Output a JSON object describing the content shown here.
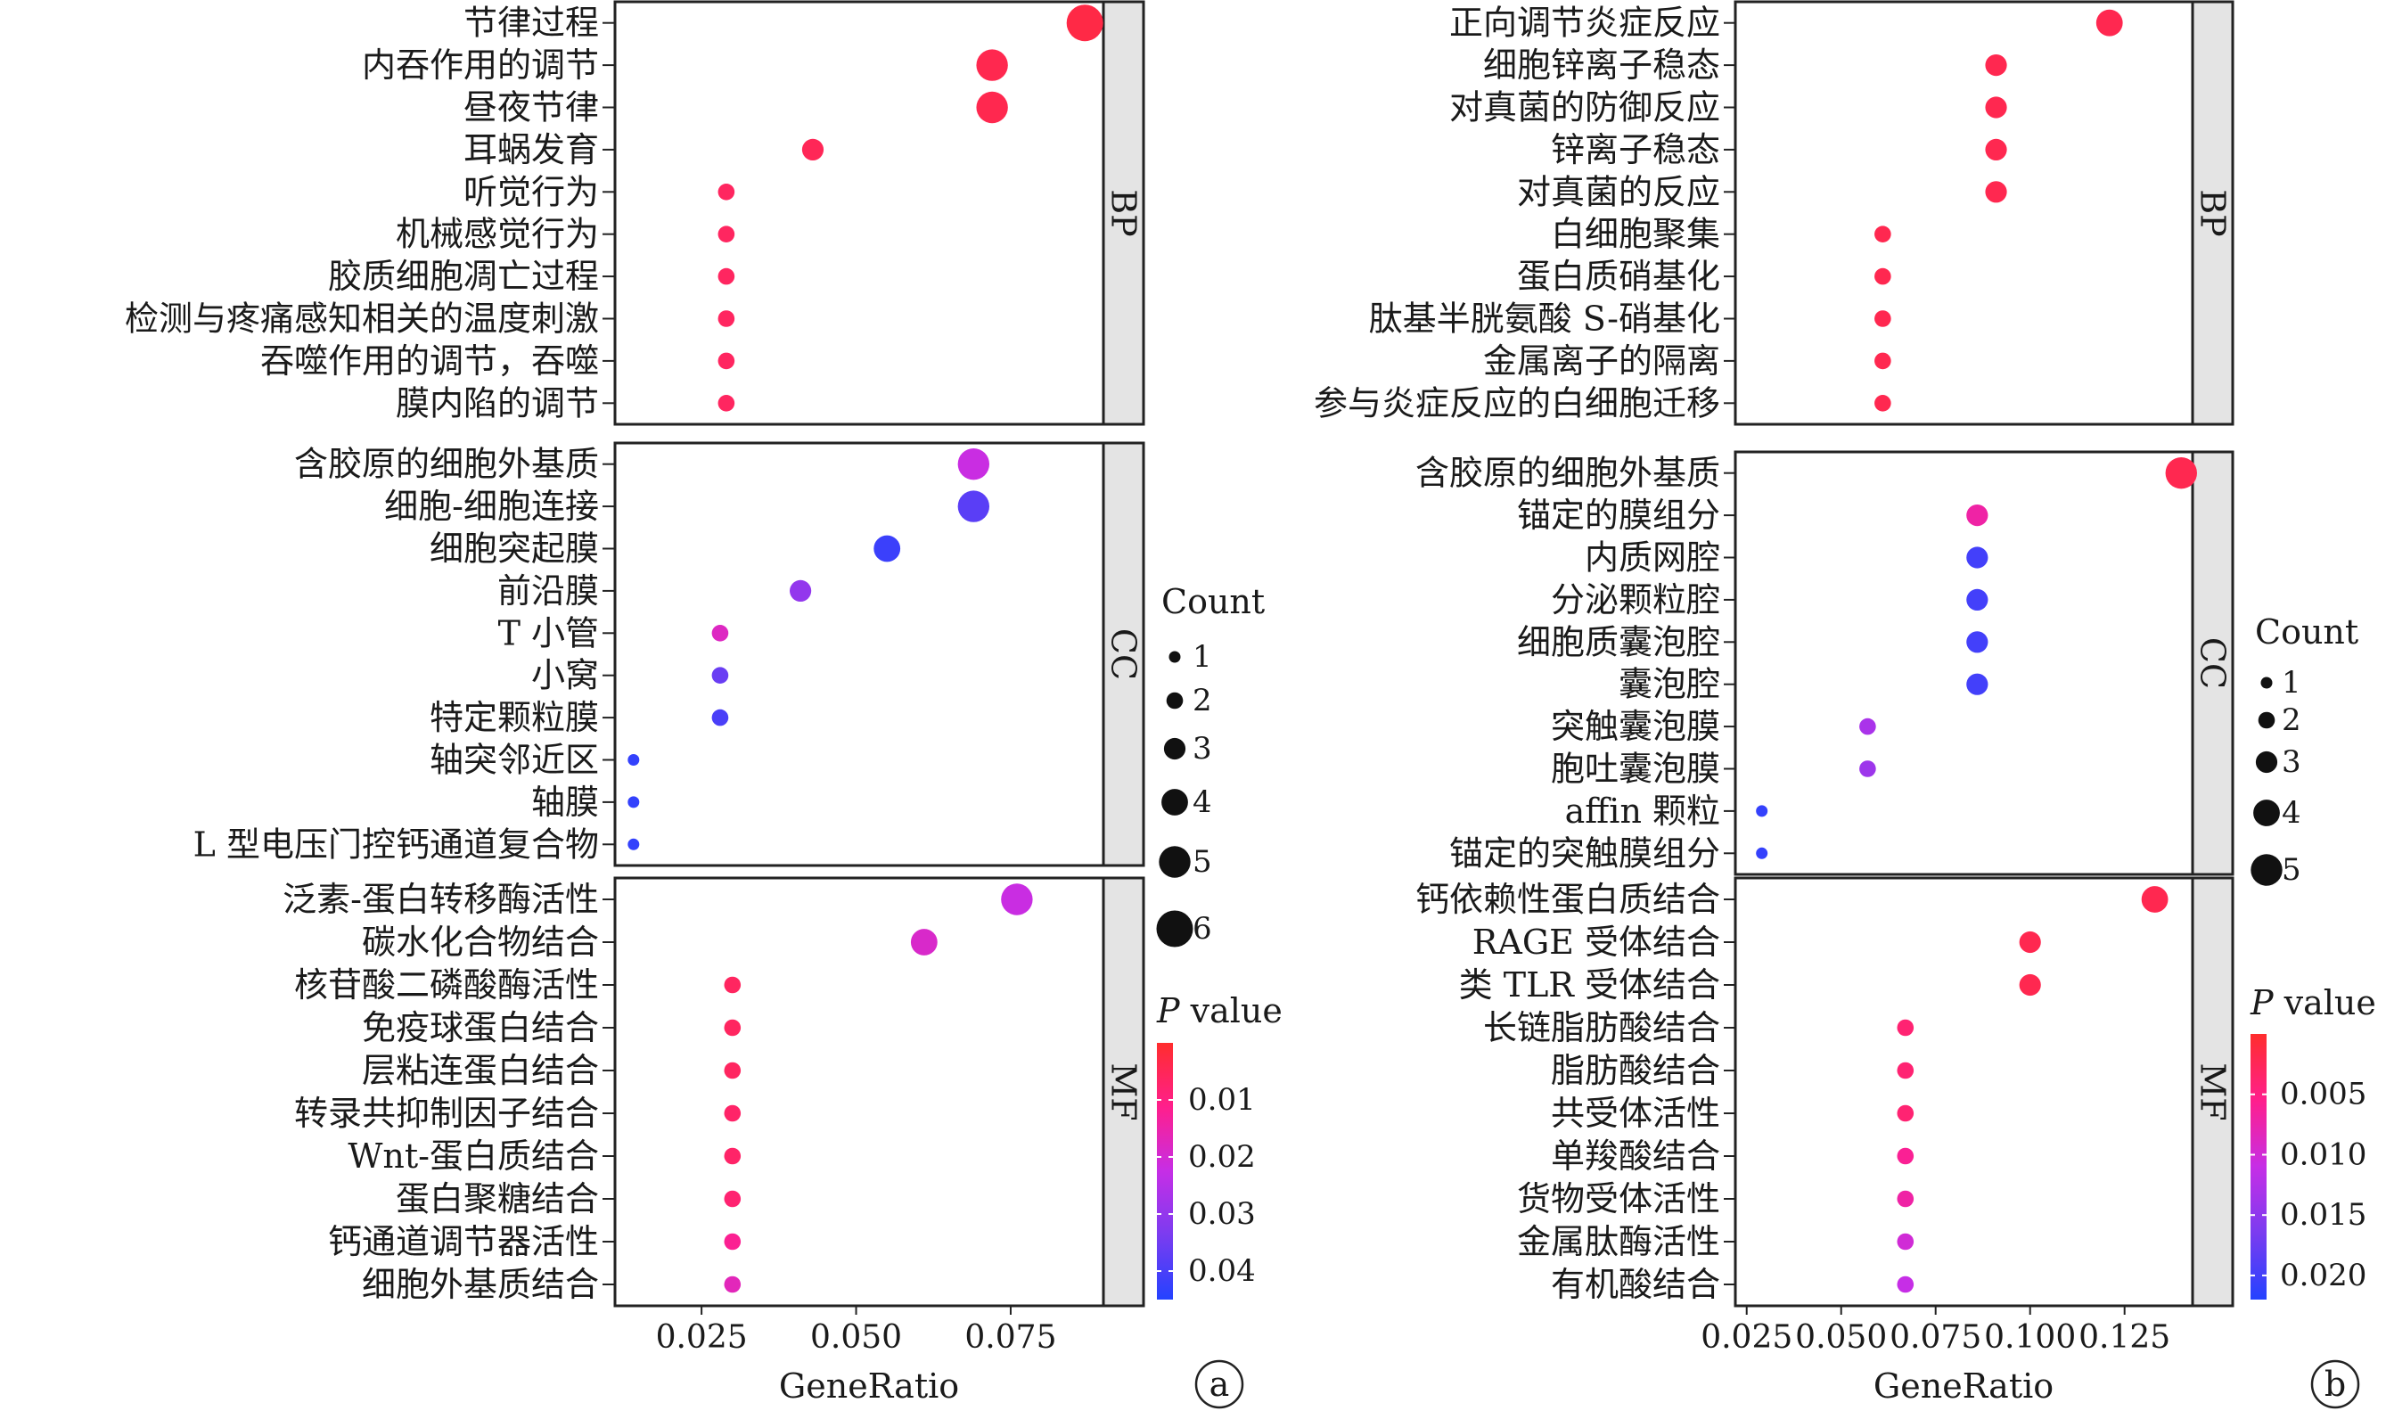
{
  "chart_data": [
    {
      "type": "scatter",
      "panel_tag": "a",
      "xlabel": "GeneRatio",
      "xlim": [
        0.011,
        0.09
      ],
      "xticks": [
        0.025,
        0.05,
        0.075
      ],
      "xtick_labels": [
        "0.025",
        "0.050",
        "0.075"
      ],
      "size_legend": {
        "title": "Count",
        "values": [
          1,
          2,
          3,
          4,
          5,
          6
        ]
      },
      "color_legend": {
        "title_italic": "P",
        "title_rest": " value",
        "range": [
          0.0,
          0.045
        ],
        "ticks": [
          0.01,
          0.02,
          0.03,
          0.04
        ],
        "tick_labels": [
          "0.01",
          "0.02",
          "0.03",
          "0.04"
        ],
        "colors": [
          "#ff2d2d",
          "#ff1f8c",
          "#c62ee6",
          "#7a3cf0",
          "#2442ff"
        ]
      },
      "facets": [
        {
          "name": "BP",
          "categories": [
            "节律过程",
            "内吞作用的调节",
            "昼夜节律",
            "耳蜗发育",
            "听觉行为",
            "机械感觉行为",
            "胶质细胞凋亡过程",
            "检测与疼痛感知相关的温度刺激",
            "吞噬作用的调节，吞噬",
            "膜内陷的调节"
          ],
          "x": [
            0.087,
            0.072,
            0.072,
            0.043,
            0.029,
            0.029,
            0.029,
            0.029,
            0.029,
            0.029
          ],
          "count": [
            6,
            5,
            5,
            3,
            2,
            2,
            2,
            2,
            2,
            2
          ],
          "p": [
            0.003,
            0.004,
            0.004,
            0.005,
            0.006,
            0.006,
            0.006,
            0.006,
            0.006,
            0.006
          ]
        },
        {
          "name": "CC",
          "categories": [
            "含胶原的细胞外基质",
            "细胞-细胞连接",
            "细胞突起膜",
            "前沿膜",
            "T 小管",
            "小窝",
            "特定颗粒膜",
            "轴突邻近区",
            "轴膜",
            "L 型电压门控钙通道复合物"
          ],
          "x": [
            0.069,
            0.069,
            0.055,
            0.041,
            0.028,
            0.028,
            0.028,
            0.014,
            0.014,
            0.014
          ],
          "count": [
            5,
            5,
            4,
            3,
            2,
            2,
            2,
            1,
            1,
            1
          ],
          "p": [
            0.022,
            0.038,
            0.042,
            0.03,
            0.018,
            0.036,
            0.04,
            0.043,
            0.043,
            0.043
          ]
        },
        {
          "name": "MF",
          "categories": [
            "泛素-蛋白转移酶活性",
            "碳水化合物结合",
            "核苷酸二磷酸酶活性",
            "免疫球蛋白结合",
            "层粘连蛋白结合",
            "转录共抑制因子结合",
            "Wnt-蛋白质结合",
            "蛋白聚糖结合",
            "钙通道调节器活性",
            "细胞外基质结合"
          ],
          "x": [
            0.076,
            0.061,
            0.03,
            0.03,
            0.03,
            0.03,
            0.03,
            0.03,
            0.03,
            0.03
          ],
          "count": [
            5,
            4,
            2,
            2,
            2,
            2,
            2,
            2,
            2,
            2
          ],
          "p": [
            0.022,
            0.019,
            0.006,
            0.006,
            0.006,
            0.007,
            0.007,
            0.008,
            0.012,
            0.017
          ]
        }
      ]
    },
    {
      "type": "scatter",
      "panel_tag": "b",
      "xlabel": "GeneRatio",
      "xlim": [
        0.022,
        0.143
      ],
      "xticks": [
        0.025,
        0.05,
        0.075,
        0.1,
        0.125
      ],
      "xtick_labels": [
        "0.025",
        "0.050",
        "0.075",
        "0.100",
        "0.125"
      ],
      "size_legend": {
        "title": "Count",
        "values": [
          1,
          2,
          3,
          4,
          5
        ]
      },
      "color_legend": {
        "title_italic": "P",
        "title_rest": " value",
        "range": [
          0.0,
          0.022
        ],
        "ticks": [
          0.005,
          0.01,
          0.015,
          0.02
        ],
        "tick_labels": [
          "0.005",
          "0.010",
          "0.015",
          "0.020"
        ],
        "colors": [
          "#ff2d2d",
          "#ff1f8c",
          "#c62ee6",
          "#7a3cf0",
          "#2442ff"
        ]
      },
      "facets": [
        {
          "name": "BP",
          "categories": [
            "正向调节炎症反应",
            "细胞锌离子稳态",
            "对真菌的防御反应",
            "锌离子稳态",
            "对真菌的反应",
            "白细胞聚集",
            "蛋白质硝基化",
            "肽基半胱氨酸 S-硝基化",
            "金属离子的隔离",
            "参与炎症反应的白细胞迁移"
          ],
          "x": [
            0.121,
            0.091,
            0.091,
            0.091,
            0.091,
            0.061,
            0.061,
            0.061,
            0.061,
            0.061
          ],
          "count": [
            4,
            3,
            3,
            3,
            3,
            2,
            2,
            2,
            2,
            2
          ],
          "p": [
            0.002,
            0.002,
            0.002,
            0.002,
            0.002,
            0.002,
            0.002,
            0.002,
            0.002,
            0.002
          ]
        },
        {
          "name": "CC",
          "categories": [
            "含胶原的细胞外基质",
            "锚定的膜组分",
            "内质网腔",
            "分泌颗粒腔",
            "细胞质囊泡腔",
            "囊泡腔",
            "突触囊泡膜",
            "胞吐囊泡膜",
            "affin 颗粒",
            "锚定的突触膜组分"
          ],
          "x": [
            0.14,
            0.086,
            0.086,
            0.086,
            0.086,
            0.086,
            0.057,
            0.057,
            0.029,
            0.029
          ],
          "count": [
            5,
            3,
            3,
            3,
            3,
            3,
            2,
            2,
            1,
            1
          ],
          "p": [
            0.002,
            0.007,
            0.02,
            0.02,
            0.02,
            0.02,
            0.013,
            0.014,
            0.021,
            0.021
          ]
        },
        {
          "name": "MF",
          "categories": [
            "钙依赖性蛋白质结合",
            "RAGE 受体结合",
            "类 TLR 受体结合",
            "长链脂肪酸结合",
            "脂肪酸结合",
            "共受体活性",
            "单羧酸结合",
            "货物受体活性",
            "金属肽酶活性",
            "有机酸结合"
          ],
          "x": [
            0.133,
            0.1,
            0.1,
            0.067,
            0.067,
            0.067,
            0.067,
            0.067,
            0.067,
            0.067
          ],
          "count": [
            4,
            3,
            3,
            2,
            2,
            2,
            2,
            2,
            2,
            2
          ],
          "p": [
            0.002,
            0.002,
            0.002,
            0.004,
            0.004,
            0.004,
            0.006,
            0.007,
            0.01,
            0.011
          ]
        }
      ]
    }
  ]
}
